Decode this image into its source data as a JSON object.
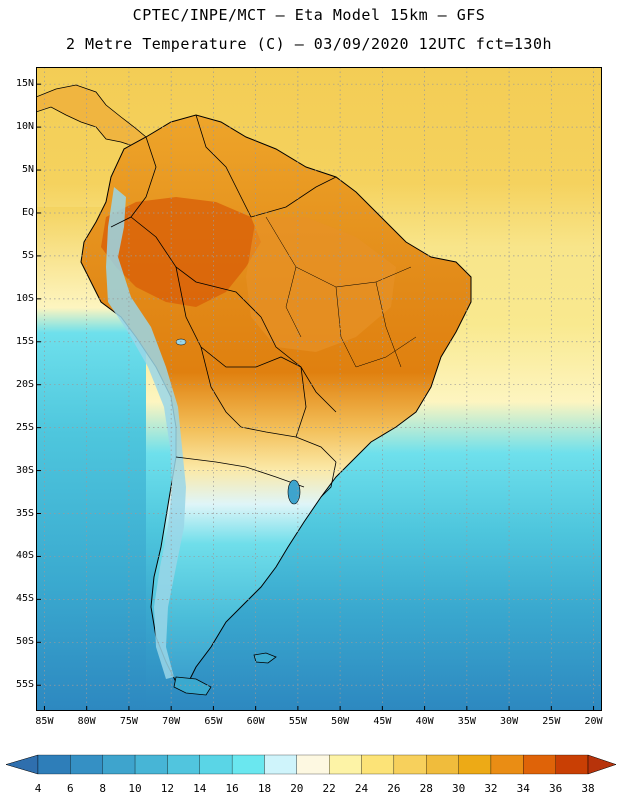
{
  "title_line1": "CPTEC/INPE/MCT –  Eta Model 15km – GFS",
  "title_line2": "2 Metre Temperature (C) – 03/09/2020 12UTC fct=130h",
  "map": {
    "lon_range": [
      -86,
      -19
    ],
    "lat_range": [
      -58,
      17
    ],
    "lat_ticks": [
      {
        "value": 15,
        "label": "15N"
      },
      {
        "value": 10,
        "label": "10N"
      },
      {
        "value": 5,
        "label": "5N"
      },
      {
        "value": 0,
        "label": "EQ"
      },
      {
        "value": -5,
        "label": "5S"
      },
      {
        "value": -10,
        "label": "10S"
      },
      {
        "value": -15,
        "label": "15S"
      },
      {
        "value": -20,
        "label": "20S"
      },
      {
        "value": -25,
        "label": "25S"
      },
      {
        "value": -30,
        "label": "30S"
      },
      {
        "value": -35,
        "label": "35S"
      },
      {
        "value": -40,
        "label": "40S"
      },
      {
        "value": -45,
        "label": "45S"
      },
      {
        "value": -50,
        "label": "50S"
      },
      {
        "value": -55,
        "label": "55S"
      }
    ],
    "lon_ticks": [
      {
        "value": -85,
        "label": "85W"
      },
      {
        "value": -80,
        "label": "80W"
      },
      {
        "value": -75,
        "label": "75W"
      },
      {
        "value": -70,
        "label": "70W"
      },
      {
        "value": -65,
        "label": "65W"
      },
      {
        "value": -60,
        "label": "60W"
      },
      {
        "value": -55,
        "label": "55W"
      },
      {
        "value": -50,
        "label": "50W"
      },
      {
        "value": -45,
        "label": "45W"
      },
      {
        "value": -40,
        "label": "40W"
      },
      {
        "value": -35,
        "label": "35W"
      },
      {
        "value": -30,
        "label": "30W"
      },
      {
        "value": -25,
        "label": "25W"
      },
      {
        "value": -20,
        "label": "20W"
      }
    ],
    "colors": {
      "ocean_tropical": "#f3cd55",
      "ocean_warm": "#f8e58a",
      "ocean_transition": "#fdf5c0",
      "ocean_mid": "#5fd8e6",
      "ocean_cool": "#3cb2d2",
      "ocean_cold": "#2d8cc2",
      "land_hot": "#e0800f",
      "land_very_hot": "#d85c07",
      "andes_cold": "#9ad6e8",
      "border": "#000000",
      "grid": "#9a9a9a"
    }
  },
  "colorbar": {
    "labels": [
      "4",
      "6",
      "8",
      "10",
      "12",
      "14",
      "16",
      "18",
      "20",
      "22",
      "24",
      "26",
      "28",
      "30",
      "32",
      "34",
      "36",
      "38"
    ],
    "colors": [
      "#2e7eb9",
      "#3590c4",
      "#3ea4cd",
      "#47b5d6",
      "#51c5de",
      "#5ad5e6",
      "#6ae7ef",
      "#cff4fb",
      "#fdf8e1",
      "#fdf3a6",
      "#fce377",
      "#f7d05c",
      "#f0bc3c",
      "#edaa16",
      "#ea8d14",
      "#df6308",
      "#c93f04"
    ],
    "left_arrow_color": "#2f6fae",
    "right_arrow_color": "#b7330b"
  }
}
